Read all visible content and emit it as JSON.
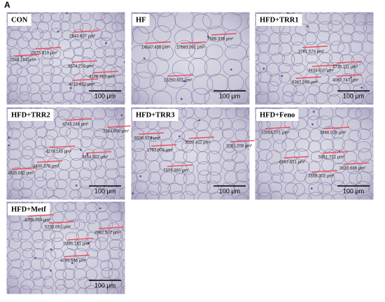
{
  "figure_label": "A",
  "panels": [
    {
      "label": "CON",
      "areas": [
        "2843.607 μm²",
        "2675.819 μm²",
        "2544.184 μm²",
        "3574.210 μm²",
        "4176.765 μm²",
        "4012.622 μm²"
      ],
      "scale_bar": "100 μm"
    },
    {
      "label": "HF",
      "areas": [
        "14547.455 μm²",
        "10583.081 μm²",
        "7589.339 μm²",
        "13250.601 μm²"
      ],
      "scale_bar": "100 μm"
    },
    {
      "label": "HFD+TRR1",
      "areas": [
        "3761.574 μm²",
        "4433.410 μm²",
        "4730.111 μm²",
        "6387.269 μm²",
        "4067.747 μm²"
      ],
      "scale_bar": "100 μm"
    },
    {
      "label": "HFD+TRR2",
      "areas": [
        "4743.246 μm²",
        "3244.698 μm²",
        "4278.185 μm²",
        "3654.927 μm²",
        "4400.378 μm²",
        "4935.062 μm²"
      ],
      "scale_bar": "100 μm"
    },
    {
      "label": "HFD+TRR3",
      "areas": [
        "5536.578 μm²",
        "1757.904 μm²",
        "3520.411 μm²",
        "3081.208 μm²",
        "7374.380 μm²"
      ],
      "scale_bar": "100 μm"
    },
    {
      "label": "HFD+Feno",
      "areas": [
        "10054.071 μm²",
        "3466.028 μm²",
        "6667.551 μm²",
        "5851.721 μm²",
        "3610.686 μm²",
        "3556.303 μm²"
      ],
      "scale_bar": "100 μm"
    },
    {
      "label": "HFD+Metf",
      "areas": [
        "4755.704 μm²",
        "5233.061 μm²",
        "2982.507 μm²",
        "3395.181 μm²",
        "4793.546 μm²"
      ],
      "scale_bar": "100 μm"
    }
  ]
}
